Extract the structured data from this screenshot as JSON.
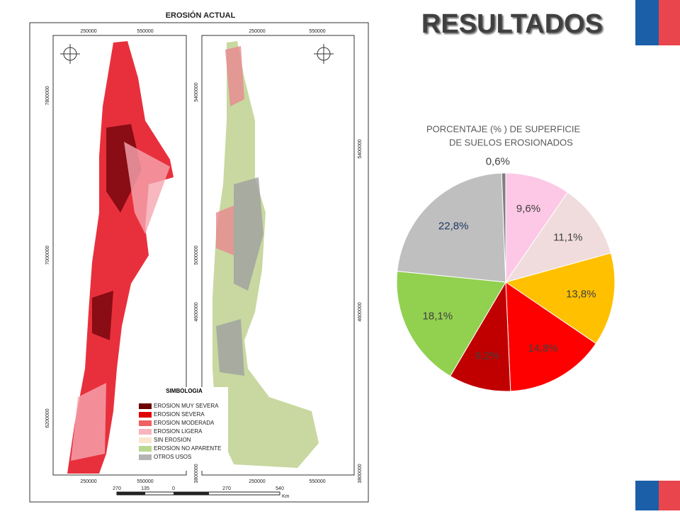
{
  "slide": {
    "title": "RESULTADOS"
  },
  "map": {
    "title": "EROSIÓN ACTUAL",
    "left_top_ticks": [
      "250000",
      "550000"
    ],
    "left_bottom_ticks": [
      "250000",
      "550000"
    ],
    "left_side_ticks": [
      "7800000",
      "7000000",
      "6200000"
    ],
    "right_top_ticks": [
      "250000",
      "550000"
    ],
    "right_bottom_ticks": [
      "250000",
      "550000"
    ],
    "right_side_ticks": [
      "5400000",
      "5000000",
      "4600000",
      "3800000"
    ],
    "right_outer_ticks": [
      "5400000",
      "4600000",
      "3800000"
    ],
    "legend_title": "SIMBOLOGIA",
    "legend": [
      {
        "name": "EROSION MUY SEVERA",
        "color": "#6b0000"
      },
      {
        "name": "EROSION SEVERA",
        "color": "#e00000"
      },
      {
        "name": "EROSION MODERADA",
        "color": "#f06060"
      },
      {
        "name": "EROSION LIGERA",
        "color": "#f6b4bc"
      },
      {
        "name": "SIN EROSION",
        "color": "#f9e6cc"
      },
      {
        "name": "EROSION NO APARENTE",
        "color": "#b8d890"
      },
      {
        "name": "OTROS USOS",
        "color": "#b4b4b4"
      }
    ],
    "scale_labels": [
      "270",
      "135",
      "0",
      "270",
      "540"
    ],
    "scale_unit": "Km"
  },
  "chart_data": {
    "type": "pie",
    "title_lines": [
      "PORCENTAJE (% ) DE SUPERFICIE",
      "DE SUELOS EROSIONADOS"
    ],
    "values": [
      9.6,
      11.1,
      13.8,
      14.8,
      9.2,
      18.1,
      22.8,
      0.6
    ],
    "value_labels": [
      "9,6%",
      "11,1%",
      "13,8%",
      "14,8%",
      "9,2%",
      "18,1%",
      "22,8%",
      "0,6%"
    ],
    "colors": [
      "#fcc8e6",
      "#f0dcdc",
      "#ffc000",
      "#ff0000",
      "#c00000",
      "#92d050",
      "#bfbfbf",
      "#7f7f7f"
    ]
  }
}
